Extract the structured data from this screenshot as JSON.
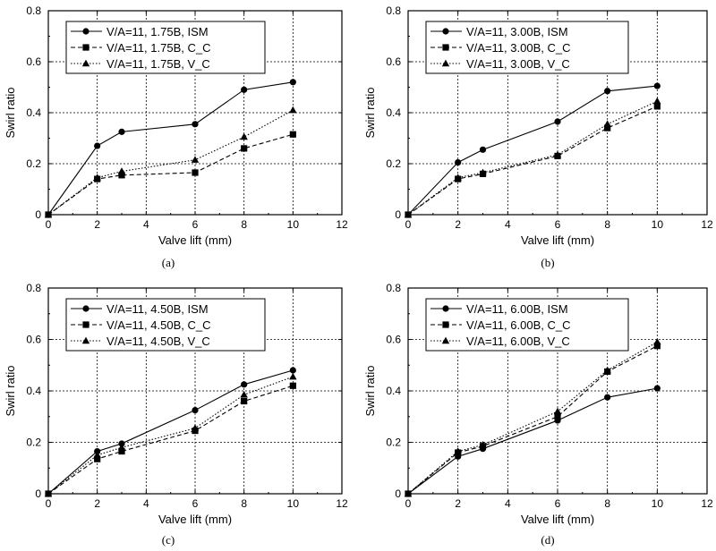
{
  "chart_data": [
    {
      "type": "line",
      "panel": "(a)",
      "xlabel": "Valve lift (mm)",
      "ylabel": "Swirl ratio",
      "xlim": [
        0,
        12
      ],
      "ylim": [
        0,
        0.8
      ],
      "xticks": [
        "0",
        "2",
        "4",
        "6",
        "8",
        "10",
        "12"
      ],
      "yticks": [
        "0",
        "0.2",
        "0.4",
        "0.6",
        "0.8"
      ],
      "grid": true,
      "legend_position": "top-left",
      "series": [
        {
          "name": "V/A=11, 1.75B, ISM",
          "marker": "circle",
          "line": "solid",
          "x": [
            0,
            2,
            3,
            6,
            8,
            10
          ],
          "y": [
            0,
            0.27,
            0.325,
            0.355,
            0.49,
            0.52
          ]
        },
        {
          "name": "V/A=11, 1.75B, C_C",
          "marker": "square",
          "line": "dashed",
          "x": [
            0,
            2,
            3,
            6,
            8,
            10
          ],
          "y": [
            0,
            0.14,
            0.155,
            0.165,
            0.26,
            0.315
          ]
        },
        {
          "name": "V/A=11, 1.75B, V_C",
          "marker": "triangle",
          "line": "dotted",
          "x": [
            0,
            2,
            3,
            6,
            8,
            10
          ],
          "y": [
            0,
            0.145,
            0.17,
            0.215,
            0.305,
            0.41
          ]
        }
      ]
    },
    {
      "type": "line",
      "panel": "(b)",
      "xlabel": "Valve lift (mm)",
      "ylabel": "Swirl ratio",
      "xlim": [
        0,
        12
      ],
      "ylim": [
        0,
        0.8
      ],
      "xticks": [
        "0",
        "2",
        "4",
        "6",
        "8",
        "10",
        "12"
      ],
      "yticks": [
        "0",
        "0.2",
        "0.4",
        "0.6",
        "0.8"
      ],
      "grid": true,
      "legend_position": "top-left",
      "series": [
        {
          "name": "V/A=11, 3.00B, ISM",
          "marker": "circle",
          "line": "solid",
          "x": [
            0,
            2,
            3,
            6,
            8,
            10
          ],
          "y": [
            0,
            0.205,
            0.255,
            0.365,
            0.485,
            0.505
          ]
        },
        {
          "name": "V/A=11, 3.00B, C_C",
          "marker": "square",
          "line": "dashed",
          "x": [
            0,
            2,
            3,
            6,
            8,
            10
          ],
          "y": [
            0,
            0.14,
            0.16,
            0.23,
            0.34,
            0.425
          ]
        },
        {
          "name": "V/A=11, 3.00B, V_C",
          "marker": "triangle",
          "line": "dotted",
          "x": [
            0,
            2,
            3,
            6,
            8,
            10
          ],
          "y": [
            0,
            0.145,
            0.165,
            0.235,
            0.355,
            0.445
          ]
        }
      ]
    },
    {
      "type": "line",
      "panel": "(c)",
      "xlabel": "Valve lift (mm)",
      "ylabel": "Swirl ratio",
      "xlim": [
        0,
        12
      ],
      "ylim": [
        0,
        0.8
      ],
      "xticks": [
        "0",
        "2",
        "4",
        "6",
        "8",
        "10",
        "12"
      ],
      "yticks": [
        "0",
        "0.2",
        "0.4",
        "0.6",
        "0.8"
      ],
      "grid": true,
      "legend_position": "top-left",
      "series": [
        {
          "name": "V/A=11, 4.50B, ISM",
          "marker": "circle",
          "line": "solid",
          "x": [
            0,
            2,
            3,
            6,
            8,
            10
          ],
          "y": [
            0,
            0.165,
            0.195,
            0.325,
            0.425,
            0.48
          ]
        },
        {
          "name": "V/A=11, 4.50B, C_C",
          "marker": "square",
          "line": "dashed",
          "x": [
            0,
            2,
            3,
            6,
            8,
            10
          ],
          "y": [
            0,
            0.135,
            0.165,
            0.245,
            0.36,
            0.42
          ]
        },
        {
          "name": "V/A=11, 4.50B, V_C",
          "marker": "triangle",
          "line": "dotted",
          "x": [
            0,
            2,
            3,
            6,
            8,
            10
          ],
          "y": [
            0,
            0.15,
            0.18,
            0.255,
            0.385,
            0.455
          ]
        }
      ]
    },
    {
      "type": "line",
      "panel": "(d)",
      "xlabel": "Valve lift (mm)",
      "ylabel": "Swirl ratio",
      "xlim": [
        0,
        12
      ],
      "ylim": [
        0,
        0.8
      ],
      "xticks": [
        "0",
        "2",
        "4",
        "6",
        "8",
        "10",
        "12"
      ],
      "yticks": [
        "0",
        "0.2",
        "0.4",
        "0.6",
        "0.8"
      ],
      "grid": true,
      "legend_position": "top-left",
      "series": [
        {
          "name": "V/A=11, 6.00B, ISM",
          "marker": "circle",
          "line": "solid",
          "x": [
            0,
            2,
            3,
            6,
            8,
            10
          ],
          "y": [
            0,
            0.145,
            0.175,
            0.285,
            0.375,
            0.41
          ]
        },
        {
          "name": "V/A=11, 6.00B, C_C",
          "marker": "square",
          "line": "dashed",
          "x": [
            0,
            2,
            3,
            6,
            8,
            10
          ],
          "y": [
            0,
            0.16,
            0.185,
            0.3,
            0.475,
            0.575
          ]
        },
        {
          "name": "V/A=11, 6.00B, V_C",
          "marker": "triangle",
          "line": "dotted",
          "x": [
            0,
            2,
            3,
            6,
            8,
            10
          ],
          "y": [
            0,
            0.165,
            0.19,
            0.32,
            0.48,
            0.59
          ]
        }
      ]
    }
  ]
}
